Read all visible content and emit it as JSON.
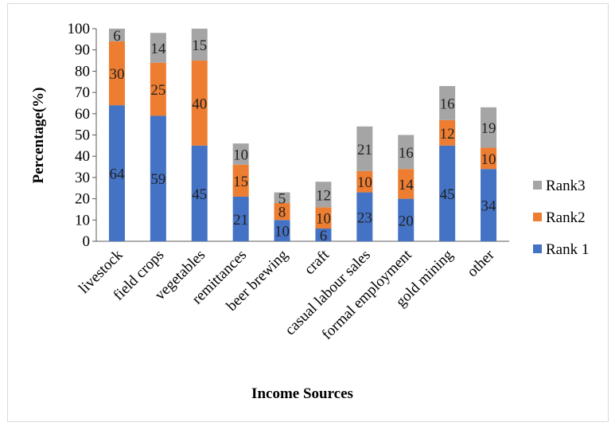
{
  "chart_data": {
    "type": "bar",
    "stacked": true,
    "title": "",
    "xlabel": "Income Sources",
    "ylabel": "Percentage(%)",
    "ylim": [
      0,
      100
    ],
    "yticks": [
      0,
      10,
      20,
      30,
      40,
      50,
      60,
      70,
      80,
      90,
      100
    ],
    "grid": false,
    "legend_position": "right",
    "categories": [
      "livestock",
      "field crops",
      "vegetables",
      "remittances",
      "beer brewing",
      "craft",
      "casual labour sales",
      "formal employment",
      "gold mining",
      "other"
    ],
    "series": [
      {
        "name": "Rank 1",
        "color": "#4472c4",
        "values": [
          64,
          59,
          45,
          21,
          10,
          6,
          23,
          20,
          45,
          34
        ]
      },
      {
        "name": "Rank2",
        "color": "#ed7d31",
        "values": [
          30,
          25,
          40,
          15,
          8,
          10,
          10,
          14,
          12,
          10
        ]
      },
      {
        "name": "Rank3",
        "color": "#a5a5a5",
        "values": [
          6,
          14,
          15,
          10,
          5,
          12,
          21,
          16,
          16,
          19
        ]
      }
    ],
    "legend_order": [
      "Rank3",
      "Rank2",
      "Rank 1"
    ]
  }
}
